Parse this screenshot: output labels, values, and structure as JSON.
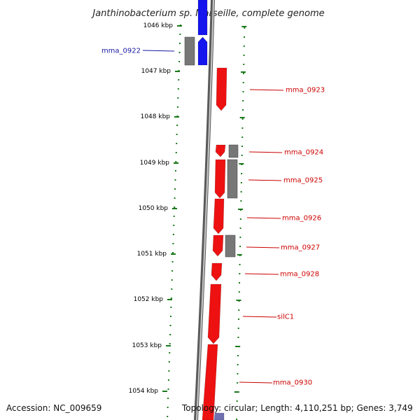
{
  "title": "Janthinobacterium sp. Marseille, complete genome",
  "footer": {
    "accession": "Accession: NC_009659",
    "topology": "Topology: circular; Length: 4,110,251 bp; Genes: 3,749"
  },
  "ticks": [
    "1046 kbp",
    "1047 kbp",
    "1048 kbp",
    "1049 kbp",
    "1050 kbp",
    "1051 kbp",
    "1052 kbp",
    "1053 kbp",
    "1054 kbp"
  ],
  "genes": [
    {
      "label": "mma_0922",
      "strand": "reverse",
      "color": "#1515ee"
    },
    {
      "label": "mma_0923",
      "strand": "forward",
      "color": "#ee1111"
    },
    {
      "label": "mma_0924",
      "strand": "forward",
      "color": "#ee1111"
    },
    {
      "label": "mma_0925",
      "strand": "forward",
      "color": "#ee1111"
    },
    {
      "label": "mma_0926",
      "strand": "forward",
      "color": "#ee1111"
    },
    {
      "label": "mma_0927",
      "strand": "forward",
      "color": "#ee1111"
    },
    {
      "label": "mma_0928",
      "strand": "forward",
      "color": "#ee1111"
    },
    {
      "label": "silC1",
      "strand": "forward",
      "color": "#ee1111"
    },
    {
      "label": "mma_0930",
      "strand": "forward",
      "color": "#ee1111"
    }
  ],
  "colors": {
    "forward": "#ee1111",
    "reverse": "#1515ee",
    "other": "#777777",
    "tick": "#1a7a1a",
    "backbone": "#888888"
  }
}
